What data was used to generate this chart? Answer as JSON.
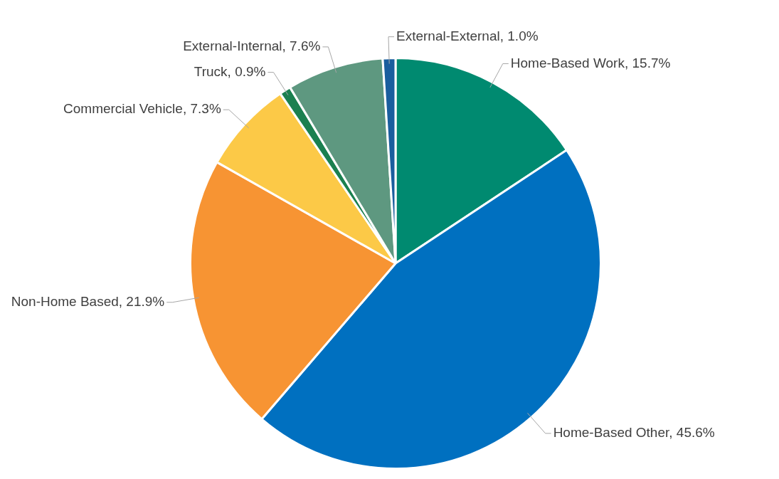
{
  "chart_data": {
    "type": "pie",
    "categories": [
      "Home-Based Work",
      "Home-Based Other",
      "Non-Home Based",
      "Commercial Vehicle",
      "Truck",
      "External-Internal",
      "External-External"
    ],
    "values": [
      15.7,
      45.6,
      21.9,
      7.3,
      0.9,
      7.6,
      1.0
    ],
    "value_labels": [
      "15.7%",
      "45.6%",
      "21.9%",
      "7.3%",
      "0.9%",
      "7.6%",
      "1.0%"
    ],
    "colors": [
      "#008a70",
      "#0070c0",
      "#f79433",
      "#fcc947",
      "#1b8050",
      "#5e9880",
      "#1a5e9e"
    ]
  }
}
